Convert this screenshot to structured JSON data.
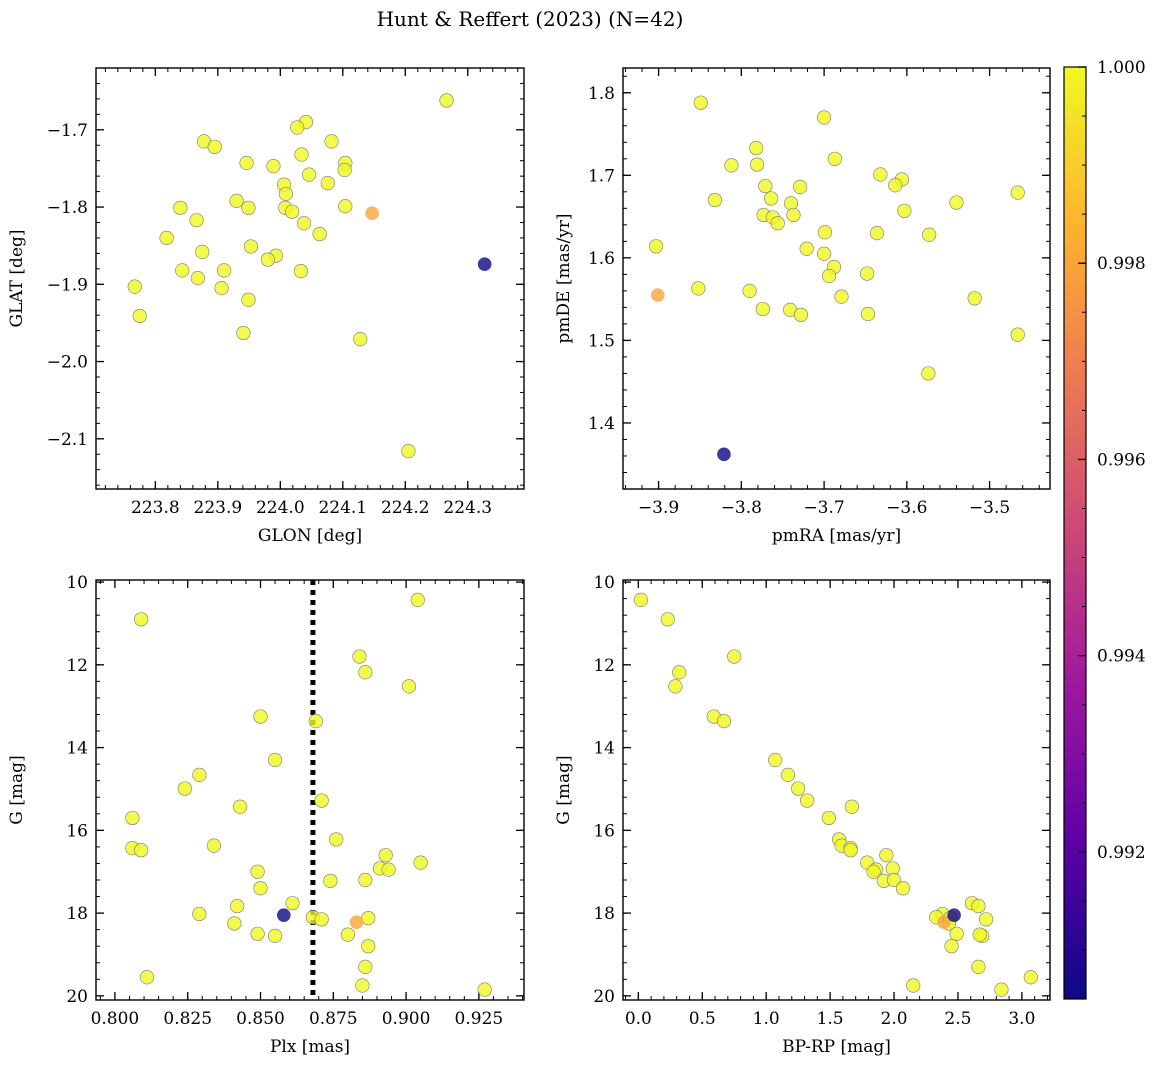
{
  "figure_title": "Hunt & Reffert (2023) (N=42)",
  "colors": {
    "marker_edge": "#7a7a7a",
    "colormap": [
      "#0d0887",
      "#5c01a6",
      "#9c179e",
      "#cc4778",
      "#ed7953",
      "#fdb42f",
      "#f0f921"
    ]
  },
  "chart_data": [
    {
      "type": "scatter",
      "panel": "top-left",
      "xlabel": "GLON [deg]",
      "ylabel": "GLAT [deg]",
      "xlim": [
        223.705,
        224.39
      ],
      "ylim": [
        -2.165,
        -1.62
      ],
      "xticks": [
        "223.8",
        "223.9",
        "224.0",
        "224.1",
        "224.2",
        "224.3"
      ],
      "xtick_values": [
        223.8,
        223.9,
        224.0,
        224.1,
        224.2,
        224.3
      ],
      "yticks": [
        "−2.1",
        "−2.0",
        "−1.9",
        "−1.8",
        "−1.7"
      ],
      "ytick_values": [
        -2.1,
        -2.0,
        -1.9,
        -1.8,
        -1.7
      ],
      "inverted_y": false,
      "points": [
        {
          "x": 224.266,
          "y": -1.662,
          "c": 1.0
        },
        {
          "x": 224.041,
          "y": -1.69,
          "c": 1.0
        },
        {
          "x": 224.027,
          "y": -1.697,
          "c": 1.0
        },
        {
          "x": 223.878,
          "y": -1.715,
          "c": 1.0
        },
        {
          "x": 224.082,
          "y": -1.715,
          "c": 1.0
        },
        {
          "x": 223.895,
          "y": -1.722,
          "c": 1.0
        },
        {
          "x": 224.034,
          "y": -1.732,
          "c": 1.0
        },
        {
          "x": 223.946,
          "y": -1.743,
          "c": 1.0
        },
        {
          "x": 224.104,
          "y": -1.743,
          "c": 1.0
        },
        {
          "x": 223.989,
          "y": -1.747,
          "c": 1.0
        },
        {
          "x": 224.103,
          "y": -1.752,
          "c": 1.0
        },
        {
          "x": 224.046,
          "y": -1.758,
          "c": 1.0
        },
        {
          "x": 224.076,
          "y": -1.769,
          "c": 1.0
        },
        {
          "x": 224.006,
          "y": -1.771,
          "c": 1.0
        },
        {
          "x": 224.009,
          "y": -1.783,
          "c": 1.0
        },
        {
          "x": 223.93,
          "y": -1.792,
          "c": 1.0
        },
        {
          "x": 223.84,
          "y": -1.801,
          "c": 1.0
        },
        {
          "x": 223.949,
          "y": -1.801,
          "c": 1.0
        },
        {
          "x": 224.008,
          "y": -1.801,
          "c": 1.0
        },
        {
          "x": 224.104,
          "y": -1.799,
          "c": 1.0
        },
        {
          "x": 224.019,
          "y": -1.806,
          "c": 1.0
        },
        {
          "x": 224.147,
          "y": -1.808,
          "c": 0.998
        },
        {
          "x": 223.866,
          "y": -1.817,
          "c": 1.0
        },
        {
          "x": 224.038,
          "y": -1.821,
          "c": 1.0
        },
        {
          "x": 224.063,
          "y": -1.835,
          "c": 1.0
        },
        {
          "x": 223.818,
          "y": -1.84,
          "c": 1.0
        },
        {
          "x": 223.953,
          "y": -1.851,
          "c": 1.0
        },
        {
          "x": 223.875,
          "y": -1.858,
          "c": 1.0
        },
        {
          "x": 223.993,
          "y": -1.863,
          "c": 1.0
        },
        {
          "x": 223.98,
          "y": -1.868,
          "c": 1.0
        },
        {
          "x": 224.327,
          "y": -1.874,
          "c": 0.9905
        },
        {
          "x": 223.843,
          "y": -1.882,
          "c": 1.0
        },
        {
          "x": 223.91,
          "y": -1.882,
          "c": 1.0
        },
        {
          "x": 224.033,
          "y": -1.883,
          "c": 1.0
        },
        {
          "x": 223.868,
          "y": -1.892,
          "c": 1.0
        },
        {
          "x": 223.767,
          "y": -1.903,
          "c": 1.0
        },
        {
          "x": 223.906,
          "y": -1.905,
          "c": 1.0
        },
        {
          "x": 223.949,
          "y": -1.92,
          "c": 1.0
        },
        {
          "x": 223.775,
          "y": -1.941,
          "c": 1.0
        },
        {
          "x": 223.941,
          "y": -1.963,
          "c": 1.0
        },
        {
          "x": 224.128,
          "y": -1.971,
          "c": 1.0
        },
        {
          "x": 224.205,
          "y": -2.116,
          "c": 1.0
        }
      ]
    },
    {
      "type": "scatter",
      "panel": "top-right",
      "xlabel": "pmRA [mas/yr]",
      "ylabel": "pmDE [mas/yr]",
      "xlim": [
        -3.943,
        -3.427
      ],
      "ylim": [
        1.32,
        1.83
      ],
      "xticks": [
        "−3.9",
        "−3.8",
        "−3.7",
        "−3.6",
        "−3.5"
      ],
      "xtick_values": [
        -3.9,
        -3.8,
        -3.7,
        -3.6,
        -3.5
      ],
      "yticks": [
        "1.4",
        "1.5",
        "1.6",
        "1.7",
        "1.8"
      ],
      "ytick_values": [
        1.4,
        1.5,
        1.6,
        1.7,
        1.8
      ],
      "inverted_y": false,
      "points": [
        {
          "x": -3.849,
          "y": 1.788,
          "c": 1.0
        },
        {
          "x": -3.7,
          "y": 1.77,
          "c": 1.0
        },
        {
          "x": -3.782,
          "y": 1.733,
          "c": 1.0
        },
        {
          "x": -3.687,
          "y": 1.72,
          "c": 1.0
        },
        {
          "x": -3.812,
          "y": 1.712,
          "c": 1.0
        },
        {
          "x": -3.781,
          "y": 1.713,
          "c": 1.0
        },
        {
          "x": -3.632,
          "y": 1.701,
          "c": 1.0
        },
        {
          "x": -3.606,
          "y": 1.695,
          "c": 1.0
        },
        {
          "x": -3.614,
          "y": 1.688,
          "c": 1.0
        },
        {
          "x": -3.771,
          "y": 1.687,
          "c": 1.0
        },
        {
          "x": -3.729,
          "y": 1.686,
          "c": 1.0
        },
        {
          "x": -3.466,
          "y": 1.679,
          "c": 1.0
        },
        {
          "x": -3.764,
          "y": 1.672,
          "c": 1.0
        },
        {
          "x": -3.832,
          "y": 1.67,
          "c": 1.0
        },
        {
          "x": -3.74,
          "y": 1.666,
          "c": 1.0
        },
        {
          "x": -3.54,
          "y": 1.667,
          "c": 1.0
        },
        {
          "x": -3.603,
          "y": 1.657,
          "c": 1.0
        },
        {
          "x": -3.737,
          "y": 1.652,
          "c": 1.0
        },
        {
          "x": -3.773,
          "y": 1.652,
          "c": 1.0
        },
        {
          "x": -3.762,
          "y": 1.649,
          "c": 1.0
        },
        {
          "x": -3.756,
          "y": 1.642,
          "c": 1.0
        },
        {
          "x": -3.699,
          "y": 1.631,
          "c": 1.0
        },
        {
          "x": -3.636,
          "y": 1.63,
          "c": 1.0
        },
        {
          "x": -3.573,
          "y": 1.628,
          "c": 1.0
        },
        {
          "x": -3.903,
          "y": 1.614,
          "c": 1.0
        },
        {
          "x": -3.721,
          "y": 1.611,
          "c": 1.0
        },
        {
          "x": -3.7,
          "y": 1.605,
          "c": 1.0
        },
        {
          "x": -3.688,
          "y": 1.589,
          "c": 1.0
        },
        {
          "x": -3.648,
          "y": 1.581,
          "c": 1.0
        },
        {
          "x": -3.694,
          "y": 1.578,
          "c": 1.0
        },
        {
          "x": -3.852,
          "y": 1.563,
          "c": 1.0
        },
        {
          "x": -3.79,
          "y": 1.56,
          "c": 1.0
        },
        {
          "x": -3.901,
          "y": 1.555,
          "c": 0.998
        },
        {
          "x": -3.679,
          "y": 1.553,
          "c": 1.0
        },
        {
          "x": -3.518,
          "y": 1.551,
          "c": 1.0
        },
        {
          "x": -3.774,
          "y": 1.538,
          "c": 1.0
        },
        {
          "x": -3.741,
          "y": 1.537,
          "c": 1.0
        },
        {
          "x": -3.647,
          "y": 1.532,
          "c": 1.0
        },
        {
          "x": -3.728,
          "y": 1.531,
          "c": 1.0
        },
        {
          "x": -3.466,
          "y": 1.507,
          "c": 1.0
        },
        {
          "x": -3.574,
          "y": 1.46,
          "c": 1.0
        },
        {
          "x": -3.821,
          "y": 1.362,
          "c": 0.9905
        }
      ]
    },
    {
      "type": "scatter",
      "panel": "bottom-left",
      "xlabel": "Plx [mas]",
      "ylabel": "G [mag]",
      "xlim": [
        0.7935,
        0.9405
      ],
      "ylim": [
        20.1,
        9.95
      ],
      "xticks": [
        "0.800",
        "0.825",
        "0.850",
        "0.875",
        "0.900",
        "0.925"
      ],
      "xtick_values": [
        0.8,
        0.825,
        0.85,
        0.875,
        0.9,
        0.925
      ],
      "yticks": [
        "10",
        "12",
        "14",
        "16",
        "18",
        "20"
      ],
      "ytick_values": [
        10,
        12,
        14,
        16,
        18,
        20
      ],
      "inverted_y": true,
      "vline": 0.868,
      "points": [
        {
          "x": 0.904,
          "y": 10.43,
          "c": 1.0
        },
        {
          "x": 0.809,
          "y": 10.9,
          "c": 1.0
        },
        {
          "x": 0.884,
          "y": 11.8,
          "c": 1.0
        },
        {
          "x": 0.886,
          "y": 12.18,
          "c": 1.0
        },
        {
          "x": 0.901,
          "y": 12.52,
          "c": 1.0
        },
        {
          "x": 0.85,
          "y": 13.25,
          "c": 1.0
        },
        {
          "x": 0.869,
          "y": 13.36,
          "c": 1.0
        },
        {
          "x": 0.855,
          "y": 14.3,
          "c": 1.0
        },
        {
          "x": 0.829,
          "y": 14.66,
          "c": 1.0
        },
        {
          "x": 0.824,
          "y": 14.99,
          "c": 1.0
        },
        {
          "x": 0.871,
          "y": 15.28,
          "c": 1.0
        },
        {
          "x": 0.843,
          "y": 15.43,
          "c": 1.0
        },
        {
          "x": 0.806,
          "y": 15.7,
          "c": 1.0
        },
        {
          "x": 0.876,
          "y": 16.22,
          "c": 1.0
        },
        {
          "x": 0.834,
          "y": 16.37,
          "c": 1.0
        },
        {
          "x": 0.806,
          "y": 16.43,
          "c": 1.0
        },
        {
          "x": 0.809,
          "y": 16.48,
          "c": 1.0
        },
        {
          "x": 0.893,
          "y": 16.6,
          "c": 1.0
        },
        {
          "x": 0.905,
          "y": 16.78,
          "c": 1.0
        },
        {
          "x": 0.891,
          "y": 16.92,
          "c": 1.0
        },
        {
          "x": 0.894,
          "y": 16.95,
          "c": 1.0
        },
        {
          "x": 0.849,
          "y": 17.0,
          "c": 1.0
        },
        {
          "x": 0.874,
          "y": 17.22,
          "c": 1.0
        },
        {
          "x": 0.886,
          "y": 17.2,
          "c": 1.0
        },
        {
          "x": 0.85,
          "y": 17.4,
          "c": 1.0
        },
        {
          "x": 0.861,
          "y": 17.76,
          "c": 1.0
        },
        {
          "x": 0.842,
          "y": 17.83,
          "c": 1.0
        },
        {
          "x": 0.829,
          "y": 18.02,
          "c": 1.0
        },
        {
          "x": 0.858,
          "y": 18.05,
          "c": 0.9905
        },
        {
          "x": 0.868,
          "y": 18.1,
          "c": 1.0
        },
        {
          "x": 0.871,
          "y": 18.15,
          "c": 1.0
        },
        {
          "x": 0.887,
          "y": 18.12,
          "c": 1.0
        },
        {
          "x": 0.883,
          "y": 18.22,
          "c": 0.998
        },
        {
          "x": 0.841,
          "y": 18.25,
          "c": 1.0
        },
        {
          "x": 0.849,
          "y": 18.5,
          "c": 1.0
        },
        {
          "x": 0.855,
          "y": 18.55,
          "c": 1.0
        },
        {
          "x": 0.88,
          "y": 18.52,
          "c": 1.0
        },
        {
          "x": 0.887,
          "y": 18.8,
          "c": 1.0
        },
        {
          "x": 0.886,
          "y": 19.3,
          "c": 1.0
        },
        {
          "x": 0.811,
          "y": 19.55,
          "c": 1.0
        },
        {
          "x": 0.885,
          "y": 19.75,
          "c": 1.0
        },
        {
          "x": 0.927,
          "y": 19.85,
          "c": 1.0
        }
      ]
    },
    {
      "type": "scatter",
      "panel": "bottom-right",
      "xlabel": "BP-RP [mag]",
      "ylabel": "G [mag]",
      "xlim": [
        -0.12,
        3.22
      ],
      "ylim": [
        20.1,
        9.95
      ],
      "xticks": [
        "0.0",
        "0.5",
        "1.0",
        "1.5",
        "2.0",
        "2.5",
        "3.0"
      ],
      "xtick_values": [
        0.0,
        0.5,
        1.0,
        1.5,
        2.0,
        2.5,
        3.0
      ],
      "yticks": [
        "10",
        "12",
        "14",
        "16",
        "18",
        "20"
      ],
      "ytick_values": [
        10,
        12,
        14,
        16,
        18,
        20
      ],
      "inverted_y": true,
      "points": [
        {
          "x": 0.02,
          "y": 10.43,
          "c": 1.0
        },
        {
          "x": 0.23,
          "y": 10.9,
          "c": 1.0
        },
        {
          "x": 0.32,
          "y": 12.18,
          "c": 1.0
        },
        {
          "x": 0.29,
          "y": 12.52,
          "c": 1.0
        },
        {
          "x": 0.75,
          "y": 11.8,
          "c": 1.0
        },
        {
          "x": 0.59,
          "y": 13.25,
          "c": 1.0
        },
        {
          "x": 0.67,
          "y": 13.36,
          "c": 1.0
        },
        {
          "x": 1.07,
          "y": 14.3,
          "c": 1.0
        },
        {
          "x": 1.17,
          "y": 14.66,
          "c": 1.0
        },
        {
          "x": 1.25,
          "y": 14.99,
          "c": 1.0
        },
        {
          "x": 1.32,
          "y": 15.28,
          "c": 1.0
        },
        {
          "x": 1.67,
          "y": 15.43,
          "c": 1.0
        },
        {
          "x": 1.49,
          "y": 15.7,
          "c": 1.0
        },
        {
          "x": 1.57,
          "y": 16.22,
          "c": 1.0
        },
        {
          "x": 1.59,
          "y": 16.37,
          "c": 1.0
        },
        {
          "x": 1.66,
          "y": 16.43,
          "c": 1.0
        },
        {
          "x": 1.66,
          "y": 16.48,
          "c": 1.0
        },
        {
          "x": 1.94,
          "y": 16.6,
          "c": 1.0
        },
        {
          "x": 1.79,
          "y": 16.78,
          "c": 1.0
        },
        {
          "x": 1.99,
          "y": 16.92,
          "c": 1.0
        },
        {
          "x": 1.86,
          "y": 16.95,
          "c": 1.0
        },
        {
          "x": 1.84,
          "y": 17.0,
          "c": 1.0
        },
        {
          "x": 1.92,
          "y": 17.22,
          "c": 1.0
        },
        {
          "x": 2.0,
          "y": 17.2,
          "c": 1.0
        },
        {
          "x": 2.07,
          "y": 17.4,
          "c": 1.0
        },
        {
          "x": 2.61,
          "y": 17.76,
          "c": 1.0
        },
        {
          "x": 2.66,
          "y": 17.83,
          "c": 1.0
        },
        {
          "x": 2.38,
          "y": 18.02,
          "c": 1.0
        },
        {
          "x": 2.47,
          "y": 18.05,
          "c": 0.9905
        },
        {
          "x": 2.33,
          "y": 18.1,
          "c": 1.0
        },
        {
          "x": 2.72,
          "y": 18.15,
          "c": 1.0
        },
        {
          "x": 2.44,
          "y": 18.12,
          "c": 1.0
        },
        {
          "x": 2.39,
          "y": 18.22,
          "c": 0.998
        },
        {
          "x": 2.43,
          "y": 18.25,
          "c": 1.0
        },
        {
          "x": 2.49,
          "y": 18.5,
          "c": 1.0
        },
        {
          "x": 2.69,
          "y": 18.55,
          "c": 1.0
        },
        {
          "x": 2.67,
          "y": 18.52,
          "c": 1.0
        },
        {
          "x": 2.45,
          "y": 18.8,
          "c": 1.0
        },
        {
          "x": 2.66,
          "y": 19.3,
          "c": 1.0
        },
        {
          "x": 3.07,
          "y": 19.55,
          "c": 1.0
        },
        {
          "x": 2.15,
          "y": 19.75,
          "c": 1.0
        },
        {
          "x": 2.84,
          "y": 19.85,
          "c": 1.0
        }
      ]
    }
  ],
  "colorbar": {
    "vmin": 0.9905,
    "vmax": 1.0,
    "ticks": [
      "0.992",
      "0.994",
      "0.996",
      "0.998",
      "1.000"
    ],
    "tick_values": [
      0.992,
      0.994,
      0.996,
      0.998,
      1.0
    ]
  }
}
